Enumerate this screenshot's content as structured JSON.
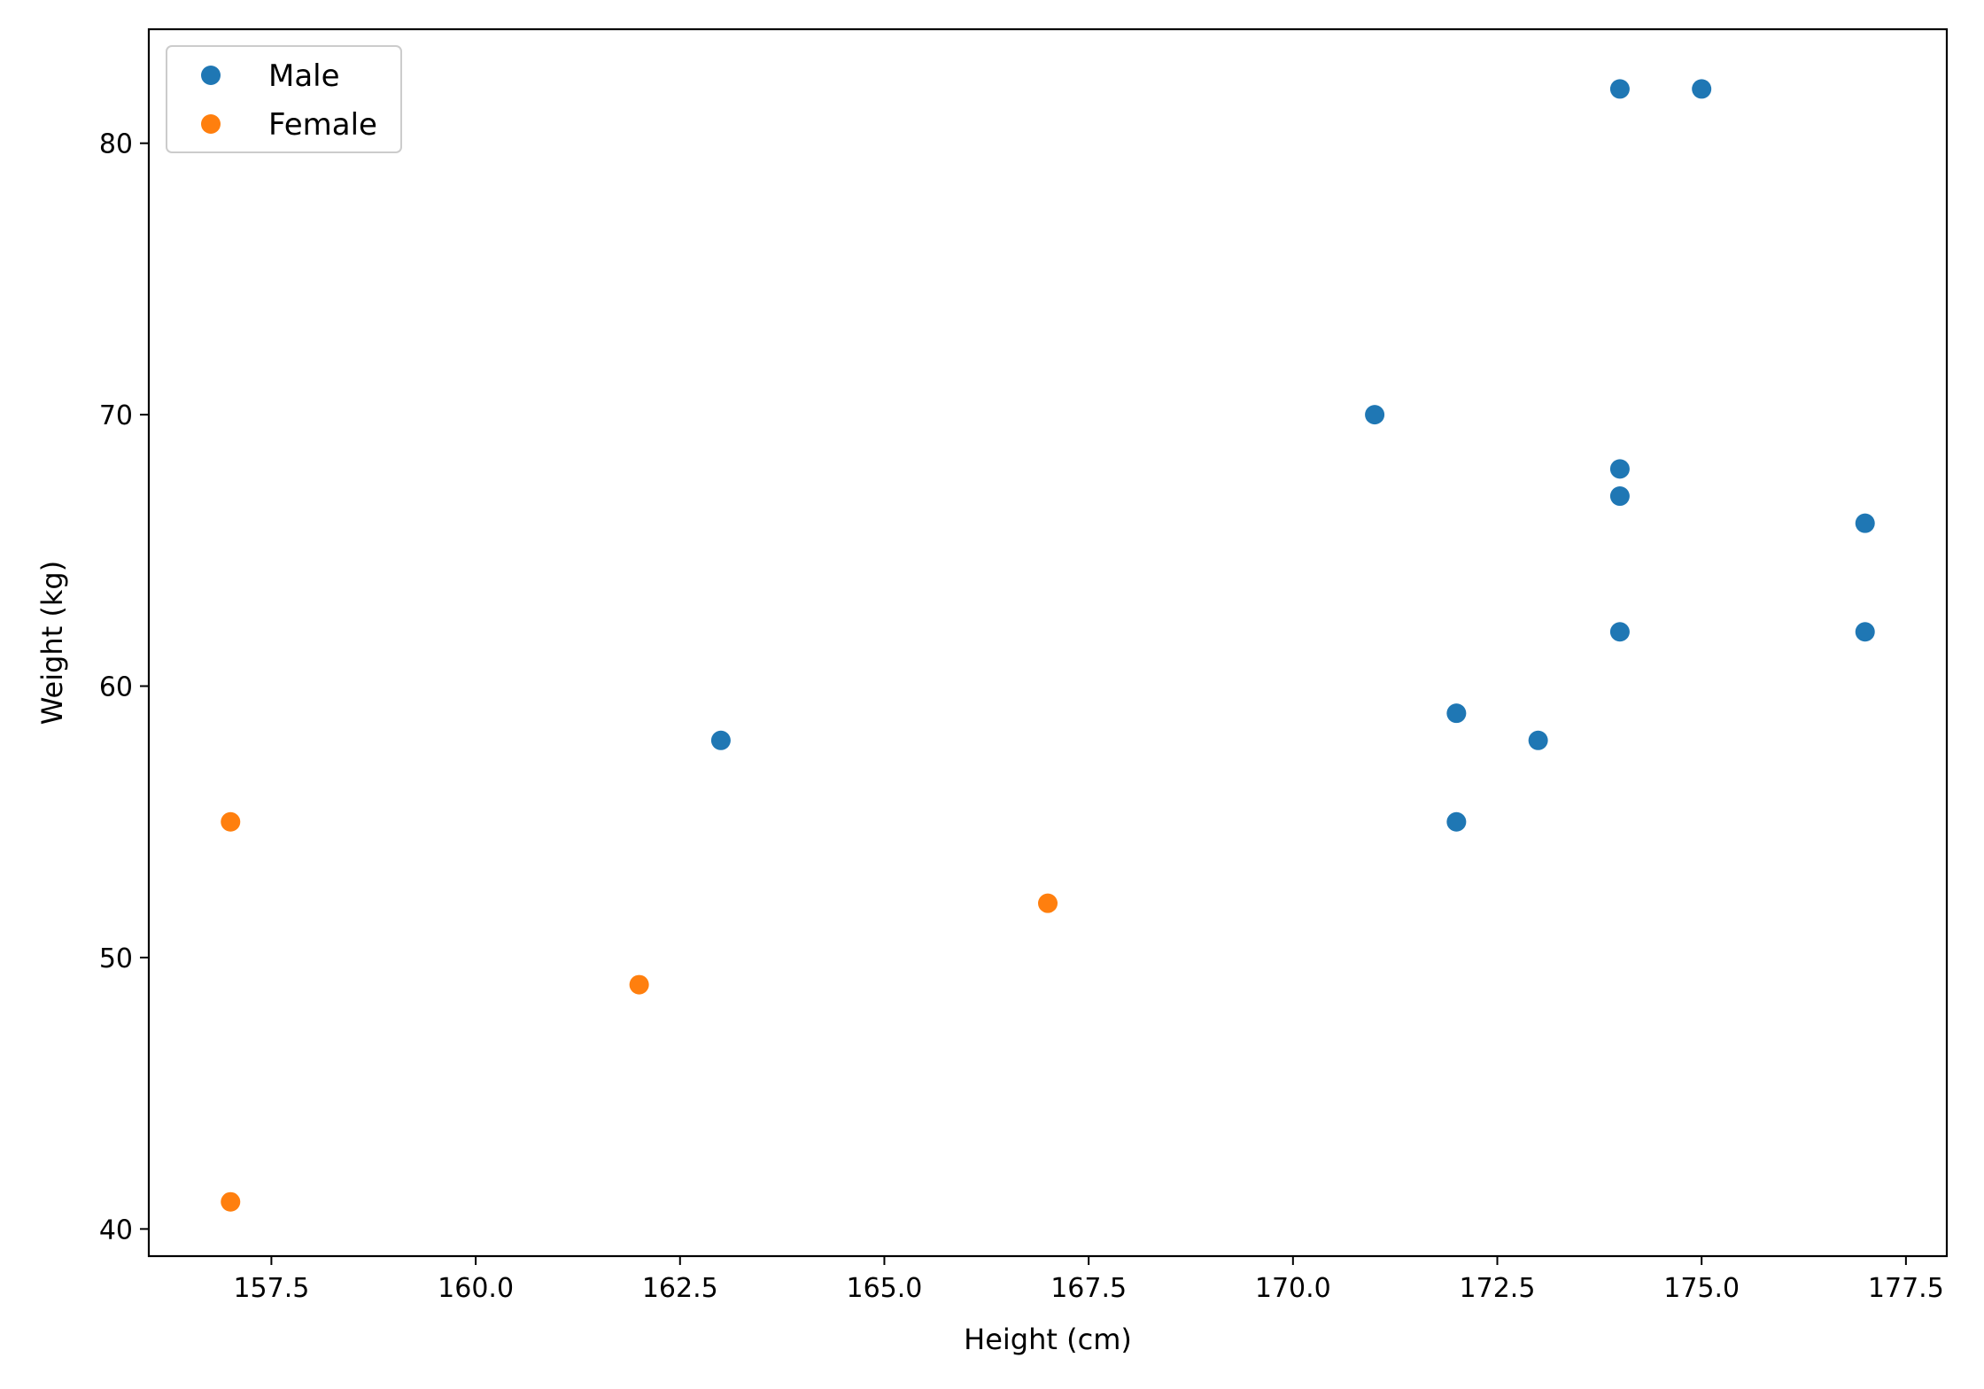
{
  "chart_data": {
    "type": "scatter",
    "title": "",
    "xlabel": "Height (cm)",
    "ylabel": "Weight (kg)",
    "xlim": [
      156.0,
      178.0
    ],
    "ylim": [
      39.0,
      84.2
    ],
    "xticks": [
      157.5,
      160.0,
      162.5,
      165.0,
      167.5,
      170.0,
      172.5,
      175.0,
      177.5
    ],
    "xtick_labels": [
      "157.5",
      "160.0",
      "162.5",
      "165.0",
      "167.5",
      "170.0",
      "172.5",
      "175.0",
      "177.5"
    ],
    "yticks": [
      40,
      50,
      60,
      70,
      80
    ],
    "ytick_labels": [
      "40",
      "50",
      "60",
      "70",
      "80"
    ],
    "grid": false,
    "legend_position": "top-left",
    "series": [
      {
        "name": "Male",
        "color": "#1f77b4",
        "points": [
          {
            "x": 163,
            "y": 58
          },
          {
            "x": 171,
            "y": 70
          },
          {
            "x": 172,
            "y": 59
          },
          {
            "x": 172,
            "y": 55
          },
          {
            "x": 173,
            "y": 58
          },
          {
            "x": 174,
            "y": 82
          },
          {
            "x": 174,
            "y": 68
          },
          {
            "x": 174,
            "y": 67
          },
          {
            "x": 174,
            "y": 62
          },
          {
            "x": 175,
            "y": 82
          },
          {
            "x": 177,
            "y": 66
          },
          {
            "x": 177,
            "y": 62
          }
        ]
      },
      {
        "name": "Female",
        "color": "#ff7f0e",
        "points": [
          {
            "x": 157,
            "y": 55
          },
          {
            "x": 157,
            "y": 41
          },
          {
            "x": 162,
            "y": 49
          },
          {
            "x": 167,
            "y": 52
          }
        ]
      }
    ]
  }
}
